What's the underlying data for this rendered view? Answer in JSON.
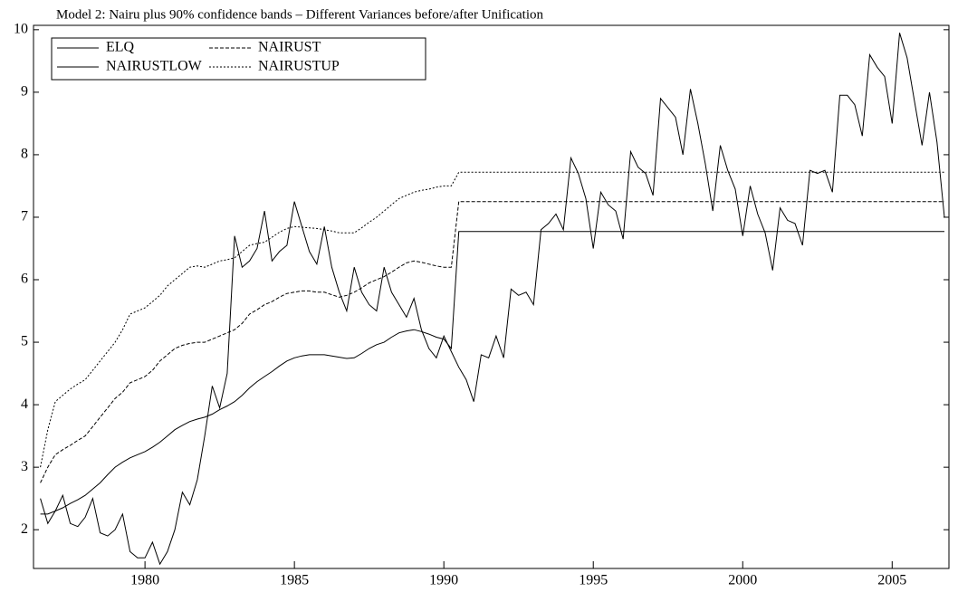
{
  "chart_data": {
    "type": "line",
    "title": "Model 2: Nairu plus 90% confidence bands – Different Variances before/after Unification",
    "x": [
      1976.5,
      1976.75,
      1977,
      1977.25,
      1977.5,
      1977.75,
      1978,
      1978.25,
      1978.5,
      1978.75,
      1979,
      1979.25,
      1979.5,
      1979.75,
      1980,
      1980.25,
      1980.5,
      1980.75,
      1981,
      1981.25,
      1981.5,
      1981.75,
      1982,
      1982.25,
      1982.5,
      1982.75,
      1983,
      1983.25,
      1983.5,
      1983.75,
      1984,
      1984.25,
      1984.5,
      1984.75,
      1985,
      1985.25,
      1985.5,
      1985.75,
      1986,
      1986.25,
      1986.5,
      1986.75,
      1987,
      1987.25,
      1987.5,
      1987.75,
      1988,
      1988.25,
      1988.5,
      1988.75,
      1989,
      1989.25,
      1989.5,
      1989.75,
      1990,
      1990.25,
      1990.5,
      1990.75,
      1991,
      1991.25,
      1991.5,
      1991.75,
      1992,
      1992.25,
      1992.5,
      1992.75,
      1993,
      1993.25,
      1993.5,
      1993.75,
      1994,
      1994.25,
      1994.5,
      1994.75,
      1995,
      1995.25,
      1995.5,
      1995.75,
      1996,
      1996.25,
      1996.5,
      1996.75,
      1997,
      1997.25,
      1997.5,
      1997.75,
      1998,
      1998.25,
      1998.5,
      1998.75,
      1999,
      1999.25,
      1999.5,
      1999.75,
      2000,
      2000.25,
      2000.5,
      2000.75,
      2001,
      2001.25,
      2001.5,
      2001.75,
      2002,
      2002.25,
      2002.5,
      2002.75,
      2003,
      2003.25,
      2003.5,
      2003.75,
      2004,
      2004.25,
      2004.5,
      2004.75,
      2005,
      2005.25,
      2005.5,
      2005.75,
      2006,
      2006.25,
      2006.5,
      2006.75
    ],
    "series": [
      {
        "name": "ELQ",
        "color": "#000000",
        "style": "solid",
        "values": [
          2.5,
          2.1,
          2.3,
          2.55,
          2.1,
          2.05,
          2.2,
          2.5,
          1.95,
          1.9,
          2.0,
          2.25,
          1.65,
          1.55,
          1.55,
          1.8,
          1.45,
          1.65,
          2.0,
          2.6,
          2.4,
          2.8,
          3.5,
          4.3,
          3.95,
          4.5,
          6.7,
          6.2,
          6.3,
          6.5,
          7.1,
          6.3,
          6.45,
          6.55,
          7.25,
          6.85,
          6.45,
          6.25,
          6.85,
          6.2,
          5.8,
          5.5,
          6.2,
          5.8,
          5.6,
          5.5,
          6.2,
          5.8,
          5.6,
          5.4,
          5.7,
          5.2,
          4.9,
          4.75,
          5.1,
          4.85,
          4.6,
          4.4,
          4.05,
          4.8,
          4.75,
          5.1,
          4.75,
          5.85,
          5.75,
          5.8,
          5.6,
          6.8,
          6.9,
          7.05,
          6.8,
          7.95,
          7.7,
          7.3,
          6.5,
          7.4,
          7.2,
          7.1,
          6.65,
          8.05,
          7.8,
          7.7,
          7.35,
          8.9,
          8.75,
          8.6,
          8.0,
          9.05,
          8.5,
          7.85,
          7.1,
          8.15,
          7.75,
          7.45,
          6.7,
          7.5,
          7.05,
          6.75,
          6.15,
          7.15,
          6.95,
          6.9,
          6.55,
          7.75,
          7.7,
          7.75,
          7.4,
          8.95,
          8.95,
          8.8,
          8.3,
          9.6,
          9.4,
          9.25,
          8.5,
          9.95,
          9.55,
          8.85,
          8.15,
          9.0,
          8.2,
          7.0
        ]
      },
      {
        "name": "NAIRUST",
        "color": "#000000",
        "style": "dashed",
        "values": [
          2.75,
          3.0,
          3.2,
          3.28,
          3.35,
          3.43,
          3.5,
          3.65,
          3.8,
          3.95,
          4.1,
          4.2,
          4.35,
          4.4,
          4.45,
          4.55,
          4.7,
          4.8,
          4.9,
          4.95,
          4.98,
          5.0,
          5.0,
          5.05,
          5.1,
          5.15,
          5.2,
          5.3,
          5.45,
          5.52,
          5.6,
          5.65,
          5.72,
          5.78,
          5.8,
          5.82,
          5.82,
          5.8,
          5.8,
          5.76,
          5.72,
          5.75,
          5.8,
          5.87,
          5.95,
          6.0,
          6.05,
          6.12,
          6.2,
          6.27,
          6.3,
          6.28,
          6.25,
          6.22,
          6.2,
          6.2,
          7.25,
          7.25,
          7.25,
          7.25,
          7.25,
          7.25,
          7.25,
          7.25,
          7.25,
          7.25,
          7.25,
          7.25,
          7.25,
          7.25,
          7.25,
          7.25,
          7.25,
          7.25,
          7.25,
          7.25,
          7.25,
          7.25,
          7.25,
          7.25,
          7.25,
          7.25,
          7.25,
          7.25,
          7.25,
          7.25,
          7.25,
          7.25,
          7.25,
          7.25,
          7.25,
          7.25,
          7.25,
          7.25,
          7.25,
          7.25,
          7.25,
          7.25,
          7.25,
          7.25,
          7.25,
          7.25,
          7.25,
          7.25,
          7.25,
          7.25,
          7.25,
          7.25,
          7.25,
          7.25,
          7.25,
          7.25,
          7.25,
          7.25,
          7.25,
          7.25,
          7.25,
          7.25,
          7.25,
          7.25,
          7.25,
          7.25
        ]
      },
      {
        "name": "NAIRUSTLOW",
        "color": "#000000",
        "style": "solid",
        "values": [
          2.25,
          2.25,
          2.3,
          2.35,
          2.42,
          2.48,
          2.55,
          2.65,
          2.75,
          2.88,
          3.0,
          3.08,
          3.15,
          3.2,
          3.25,
          3.32,
          3.4,
          3.5,
          3.6,
          3.67,
          3.73,
          3.77,
          3.8,
          3.85,
          3.92,
          3.98,
          4.05,
          4.15,
          4.27,
          4.37,
          4.45,
          4.53,
          4.62,
          4.7,
          4.75,
          4.78,
          4.8,
          4.8,
          4.8,
          4.78,
          4.76,
          4.74,
          4.75,
          4.82,
          4.9,
          4.96,
          5.0,
          5.08,
          5.15,
          5.18,
          5.2,
          5.17,
          5.13,
          5.08,
          5.05,
          4.9,
          6.77,
          6.77,
          6.77,
          6.77,
          6.77,
          6.77,
          6.77,
          6.77,
          6.77,
          6.77,
          6.77,
          6.77,
          6.77,
          6.77,
          6.77,
          6.77,
          6.77,
          6.77,
          6.77,
          6.77,
          6.77,
          6.77,
          6.77,
          6.77,
          6.77,
          6.77,
          6.77,
          6.77,
          6.77,
          6.77,
          6.77,
          6.77,
          6.77,
          6.77,
          6.77,
          6.77,
          6.77,
          6.77,
          6.77,
          6.77,
          6.77,
          6.77,
          6.77,
          6.77,
          6.77,
          6.77,
          6.77,
          6.77,
          6.77,
          6.77,
          6.77,
          6.77,
          6.77,
          6.77,
          6.77,
          6.77,
          6.77,
          6.77,
          6.77,
          6.77,
          6.77,
          6.77,
          6.77,
          6.77,
          6.77,
          6.77
        ]
      },
      {
        "name": "NAIRUSTUP",
        "color": "#000000",
        "style": "dotted",
        "values": [
          3.0,
          3.6,
          4.05,
          4.15,
          4.25,
          4.33,
          4.4,
          4.55,
          4.7,
          4.85,
          5.0,
          5.2,
          5.45,
          5.5,
          5.55,
          5.65,
          5.75,
          5.9,
          6.0,
          6.1,
          6.2,
          6.22,
          6.2,
          6.25,
          6.3,
          6.32,
          6.35,
          6.45,
          6.55,
          6.58,
          6.6,
          6.68,
          6.76,
          6.82,
          6.85,
          6.84,
          6.83,
          6.82,
          6.8,
          6.78,
          6.75,
          6.75,
          6.75,
          6.83,
          6.92,
          7.0,
          7.1,
          7.2,
          7.3,
          7.35,
          7.4,
          7.43,
          7.45,
          7.48,
          7.5,
          7.5,
          7.72,
          7.72,
          7.72,
          7.72,
          7.72,
          7.72,
          7.72,
          7.72,
          7.72,
          7.72,
          7.72,
          7.72,
          7.72,
          7.72,
          7.72,
          7.72,
          7.72,
          7.72,
          7.72,
          7.72,
          7.72,
          7.72,
          7.72,
          7.72,
          7.72,
          7.72,
          7.72,
          7.72,
          7.72,
          7.72,
          7.72,
          7.72,
          7.72,
          7.72,
          7.72,
          7.72,
          7.72,
          7.72,
          7.72,
          7.72,
          7.72,
          7.72,
          7.72,
          7.72,
          7.72,
          7.72,
          7.72,
          7.72,
          7.72,
          7.72,
          7.72,
          7.72,
          7.72,
          7.72,
          7.72,
          7.72,
          7.72,
          7.72,
          7.72,
          7.72,
          7.72,
          7.72,
          7.72,
          7.72,
          7.72,
          7.72
        ]
      }
    ],
    "xlim": [
      1976.27,
      2006.9
    ],
    "xticks": [
      1980,
      1985,
      1990,
      1995,
      2000,
      2005
    ],
    "ylim": [
      1.38,
      10.07
    ],
    "yticks": [
      2,
      3,
      4,
      5,
      6,
      7,
      8,
      9,
      10
    ],
    "legend": "upper left"
  }
}
